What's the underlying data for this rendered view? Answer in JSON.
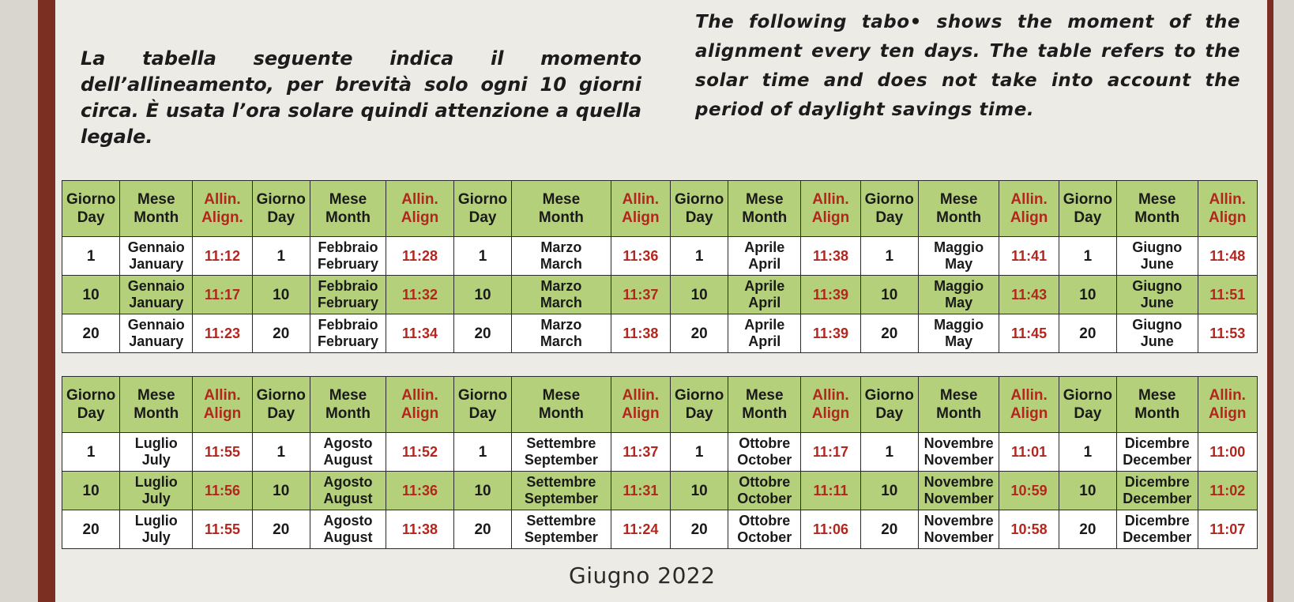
{
  "intro": {
    "italian": "La tabella seguente indica il momento dell’allineamento, per brevità solo ogni 10 giorni circa. È usata l’ora solare quindi attenzione a quella legale.",
    "english": "The following tabo• shows the moment of the alignment every ten days. The table refers to the solar time and does not take into account the period of daylight savings time."
  },
  "headers": {
    "day_it": "Giorno",
    "day_en": "Day",
    "month_it": "Mese",
    "month_en": "Month",
    "align_it": "Allin.",
    "align_en": "Align"
  },
  "tables": [
    {
      "align_en_labels": [
        "Align.",
        "Align",
        "Align",
        "Align",
        "Align",
        "Align"
      ],
      "rows": [
        {
          "green": false,
          "cells": [
            {
              "day": "1",
              "m_it": "Gennaio",
              "m_en": "January",
              "time": "11:12"
            },
            {
              "day": "1",
              "m_it": "Febbraio",
              "m_en": "February",
              "time": "11:28"
            },
            {
              "day": "1",
              "m_it": "Marzo",
              "m_en": "March",
              "time": "11:36"
            },
            {
              "day": "1",
              "m_it": "Aprile",
              "m_en": "April",
              "time": "11:38"
            },
            {
              "day": "1",
              "m_it": "Maggio",
              "m_en": "May",
              "time": "11:41"
            },
            {
              "day": "1",
              "m_it": "Giugno",
              "m_en": "June",
              "time": "11:48"
            }
          ]
        },
        {
          "green": true,
          "cells": [
            {
              "day": "10",
              "m_it": "Gennaio",
              "m_en": "January",
              "time": "11:17"
            },
            {
              "day": "10",
              "m_it": "Febbraio",
              "m_en": "February",
              "time": "11:32"
            },
            {
              "day": "10",
              "m_it": "Marzo",
              "m_en": "March",
              "time": "11:37"
            },
            {
              "day": "10",
              "m_it": "Aprile",
              "m_en": "April",
              "time": "11:39"
            },
            {
              "day": "10",
              "m_it": "Maggio",
              "m_en": "May",
              "time": "11:43"
            },
            {
              "day": "10",
              "m_it": "Giugno",
              "m_en": "June",
              "time": "11:51"
            }
          ]
        },
        {
          "green": false,
          "cells": [
            {
              "day": "20",
              "m_it": "Gennaio",
              "m_en": "January",
              "time": "11:23"
            },
            {
              "day": "20",
              "m_it": "Febbraio",
              "m_en": "February",
              "time": "11:34"
            },
            {
              "day": "20",
              "m_it": "Marzo",
              "m_en": "March",
              "time": "11:38"
            },
            {
              "day": "20",
              "m_it": "Aprile",
              "m_en": "April",
              "time": "11:39"
            },
            {
              "day": "20",
              "m_it": "Maggio",
              "m_en": "May",
              "time": "11:45"
            },
            {
              "day": "20",
              "m_it": "Giugno",
              "m_en": "June",
              "time": "11:53"
            }
          ]
        }
      ]
    },
    {
      "align_en_labels": [
        "Align",
        "Align",
        "Align",
        "Align",
        "Align",
        "Align"
      ],
      "rows": [
        {
          "green": false,
          "cells": [
            {
              "day": "1",
              "m_it": "Luglio",
              "m_en": "July",
              "time": "11:55"
            },
            {
              "day": "1",
              "m_it": "Agosto",
              "m_en": "August",
              "time": "11:52"
            },
            {
              "day": "1",
              "m_it": "Settembre",
              "m_en": "September",
              "time": "11:37"
            },
            {
              "day": "1",
              "m_it": "Ottobre",
              "m_en": "October",
              "time": "11:17"
            },
            {
              "day": "1",
              "m_it": "Novembre",
              "m_en": "November",
              "time": "11:01"
            },
            {
              "day": "1",
              "m_it": "Dicembre",
              "m_en": "December",
              "time": "11:00"
            }
          ]
        },
        {
          "green": true,
          "cells": [
            {
              "day": "10",
              "m_it": "Luglio",
              "m_en": "July",
              "time": "11:56"
            },
            {
              "day": "10",
              "m_it": "Agosto",
              "m_en": "August",
              "time": "11:36"
            },
            {
              "day": "10",
              "m_it": "Settembre",
              "m_en": "September",
              "time": "11:31"
            },
            {
              "day": "10",
              "m_it": "Ottobre",
              "m_en": "October",
              "time": "11:11"
            },
            {
              "day": "10",
              "m_it": "Novembre",
              "m_en": "November",
              "time": "10:59"
            },
            {
              "day": "10",
              "m_it": "Dicembre",
              "m_en": "December",
              "time": "11:02"
            }
          ]
        },
        {
          "green": false,
          "cells": [
            {
              "day": "20",
              "m_it": "Luglio",
              "m_en": "July",
              "time": "11:55"
            },
            {
              "day": "20",
              "m_it": "Agosto",
              "m_en": "August",
              "time": "11:38"
            },
            {
              "day": "20",
              "m_it": "Settembre",
              "m_en": "September",
              "time": "11:24"
            },
            {
              "day": "20",
              "m_it": "Ottobre",
              "m_en": "October",
              "time": "11:06"
            },
            {
              "day": "20",
              "m_it": "Novembre",
              "m_en": "November",
              "time": "10:58"
            },
            {
              "day": "20",
              "m_it": "Dicembre",
              "m_en": "December",
              "time": "11:07"
            }
          ]
        }
      ]
    }
  ],
  "footer": "Giugno 2022",
  "colors": {
    "header_green": "#b5d07a",
    "time_red": "#b3261e",
    "frame": "#7a2f22"
  }
}
